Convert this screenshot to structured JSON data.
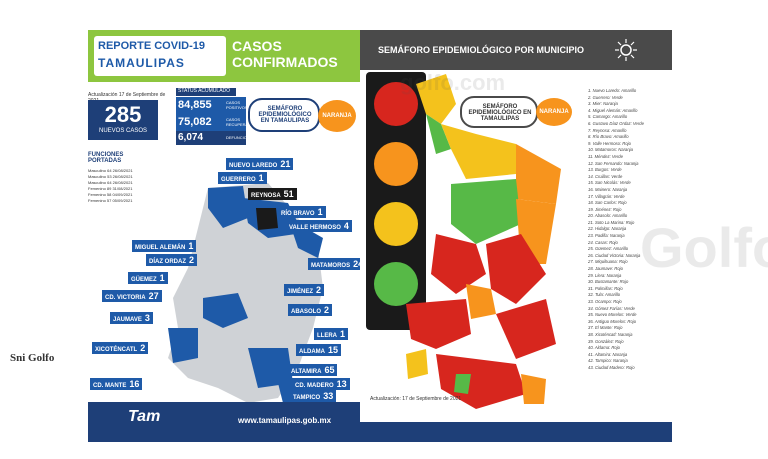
{
  "left": {
    "report_title": "REPORTE COVID-19",
    "report_sub": "TAMAULIPAS",
    "casos_line1": "CASOS",
    "casos_line2": "CONFIRMADOS",
    "date": "Actualización 17 de Septiembre de 2021",
    "nuevos_num": "285",
    "nuevos_lbl": "NUEVOS CASOS",
    "status_lbl": "STATUS ACUMULADO",
    "stats": [
      {
        "num": "84,855",
        "lbl": "CASOS POSITIVOS"
      },
      {
        "num": "75,082",
        "lbl": "CASOS RECUPERADOS"
      },
      {
        "num": "6,074",
        "lbl": "DEFUNCIONES"
      }
    ],
    "semaforo": "SEMÁFORO EPIDEMIOLÓGICO EN TAMAULIPAS",
    "naranja": "NARANJA",
    "def_title_1": "FUNCIONES",
    "def_title_2": "PORTADAS",
    "def_rows": [
      "Masculino 64 26/08/2021",
      "Masculino 53 26/08/2021",
      "Masculino 64 26/08/2021",
      "Femenino 89 31/08/2021",
      "Femenino 58 04/09/2021",
      "Femenino 57 05/09/2021"
    ],
    "city_labels": [
      {
        "name": "NUEVO LAREDO",
        "num": "21"
      },
      {
        "name": "GUERRERO",
        "num": "1"
      },
      {
        "name": "REYNOSA",
        "num": "51"
      },
      {
        "name": "RÍO BRAVO",
        "num": "1"
      },
      {
        "name": "VALLE HERMOSO",
        "num": "4"
      },
      {
        "name": "MIGUEL ALEMÁN",
        "num": "1"
      },
      {
        "name": "DÍAZ ORDAZ",
        "num": "2"
      },
      {
        "name": "MATAMOROS",
        "num": "24"
      },
      {
        "name": "GÜEMEZ",
        "num": "1"
      },
      {
        "name": "JIMÉNEZ",
        "num": "2"
      },
      {
        "name": "CD. VICTORIA",
        "num": "27"
      },
      {
        "name": "ABASOLO",
        "num": "2"
      },
      {
        "name": "JAUMAVE",
        "num": "3"
      },
      {
        "name": "LLERA",
        "num": "1"
      },
      {
        "name": "XICOTÉNCATL",
        "num": "2"
      },
      {
        "name": "ALDAMA",
        "num": "15"
      },
      {
        "name": "ALTAMIRA",
        "num": "65"
      },
      {
        "name": "CD. MADERO",
        "num": "13"
      },
      {
        "name": "CD. MANTE",
        "num": "16"
      },
      {
        "name": "TAMPICO",
        "num": "33"
      }
    ],
    "footer_logo": "Tam",
    "footer_url": "www.tamaulipas.gob.mx"
  },
  "right": {
    "title": "SEMÁFORO EPIDEMIOLÓGICO POR MUNICIPIO",
    "semaforo": "SEMÁFORO EPIDEMIOLÓGICO EN TAMAULIPAS",
    "naranja": "NARANJA",
    "actualizacion": "Actualización: 17 de Septiembre de 2021",
    "municipios": [
      "1. Nuevo Laredo: Amarillo",
      "2. Guerrero: Verde",
      "3. Mier: Naranja",
      "4. Miguel Alemán: Amarillo",
      "5. Camargo: Amarillo",
      "6. Gustavo Díaz Ordaz: Verde",
      "7. Reynosa: Amarillo",
      "8. Río Bravo: Amarillo",
      "9. Valle Hermoso: Rojo",
      "10. Matamoros: Naranja",
      "11. Méndez: Verde",
      "12. San Fernando: Naranja",
      "13. Burgos: Verde",
      "14. Cruillas: Verde",
      "15. San Nicolás: Verde",
      "16. Mainero: Naranja",
      "17. Villagrán: Verde",
      "18. San Carlos: Rojo",
      "19. Jiménez: Rojo",
      "20. Abasolo: Amarillo",
      "21. Soto La Marina: Rojo",
      "22. Hidalgo: Naranja",
      "23. Padilla: Naranja",
      "24. Casas: Rojo",
      "25. Güemez: Amarillo",
      "26. Ciudad Victoria: Naranja",
      "27. Miquihuana: Rojo",
      "28. Jaumave: Rojo",
      "29. Llera: Naranja",
      "30. Bustamante: Rojo",
      "31. Palmillas: Rojo",
      "32. Tula: Amarillo",
      "33. Ocampo: Rojo",
      "34. Gómez Farías: Verde",
      "35. Nuevo Morelos: Verde",
      "36. Antiguo Morelos: Rojo",
      "37. El Mante: Rojo",
      "38. Xicoténcatl: Naranja",
      "39. González: Rojo",
      "40. Aldama: Rojo",
      "41. Altamira: Naranja",
      "42. Tampico: Naranja",
      "43. Ciudad Madero: Rojo"
    ]
  },
  "watermarks": {
    "golfo": "Golfo",
    "domain": "golfo.com"
  },
  "corner_logo": "Sni   Golfo",
  "colors": {
    "green_header": "#8dc63f",
    "blue": "#1e5aa8",
    "dark_blue": "#1e3f78",
    "orange": "#f7941d",
    "red": "#d7261e",
    "yellow": "#f4c21c",
    "green": "#57b947"
  }
}
